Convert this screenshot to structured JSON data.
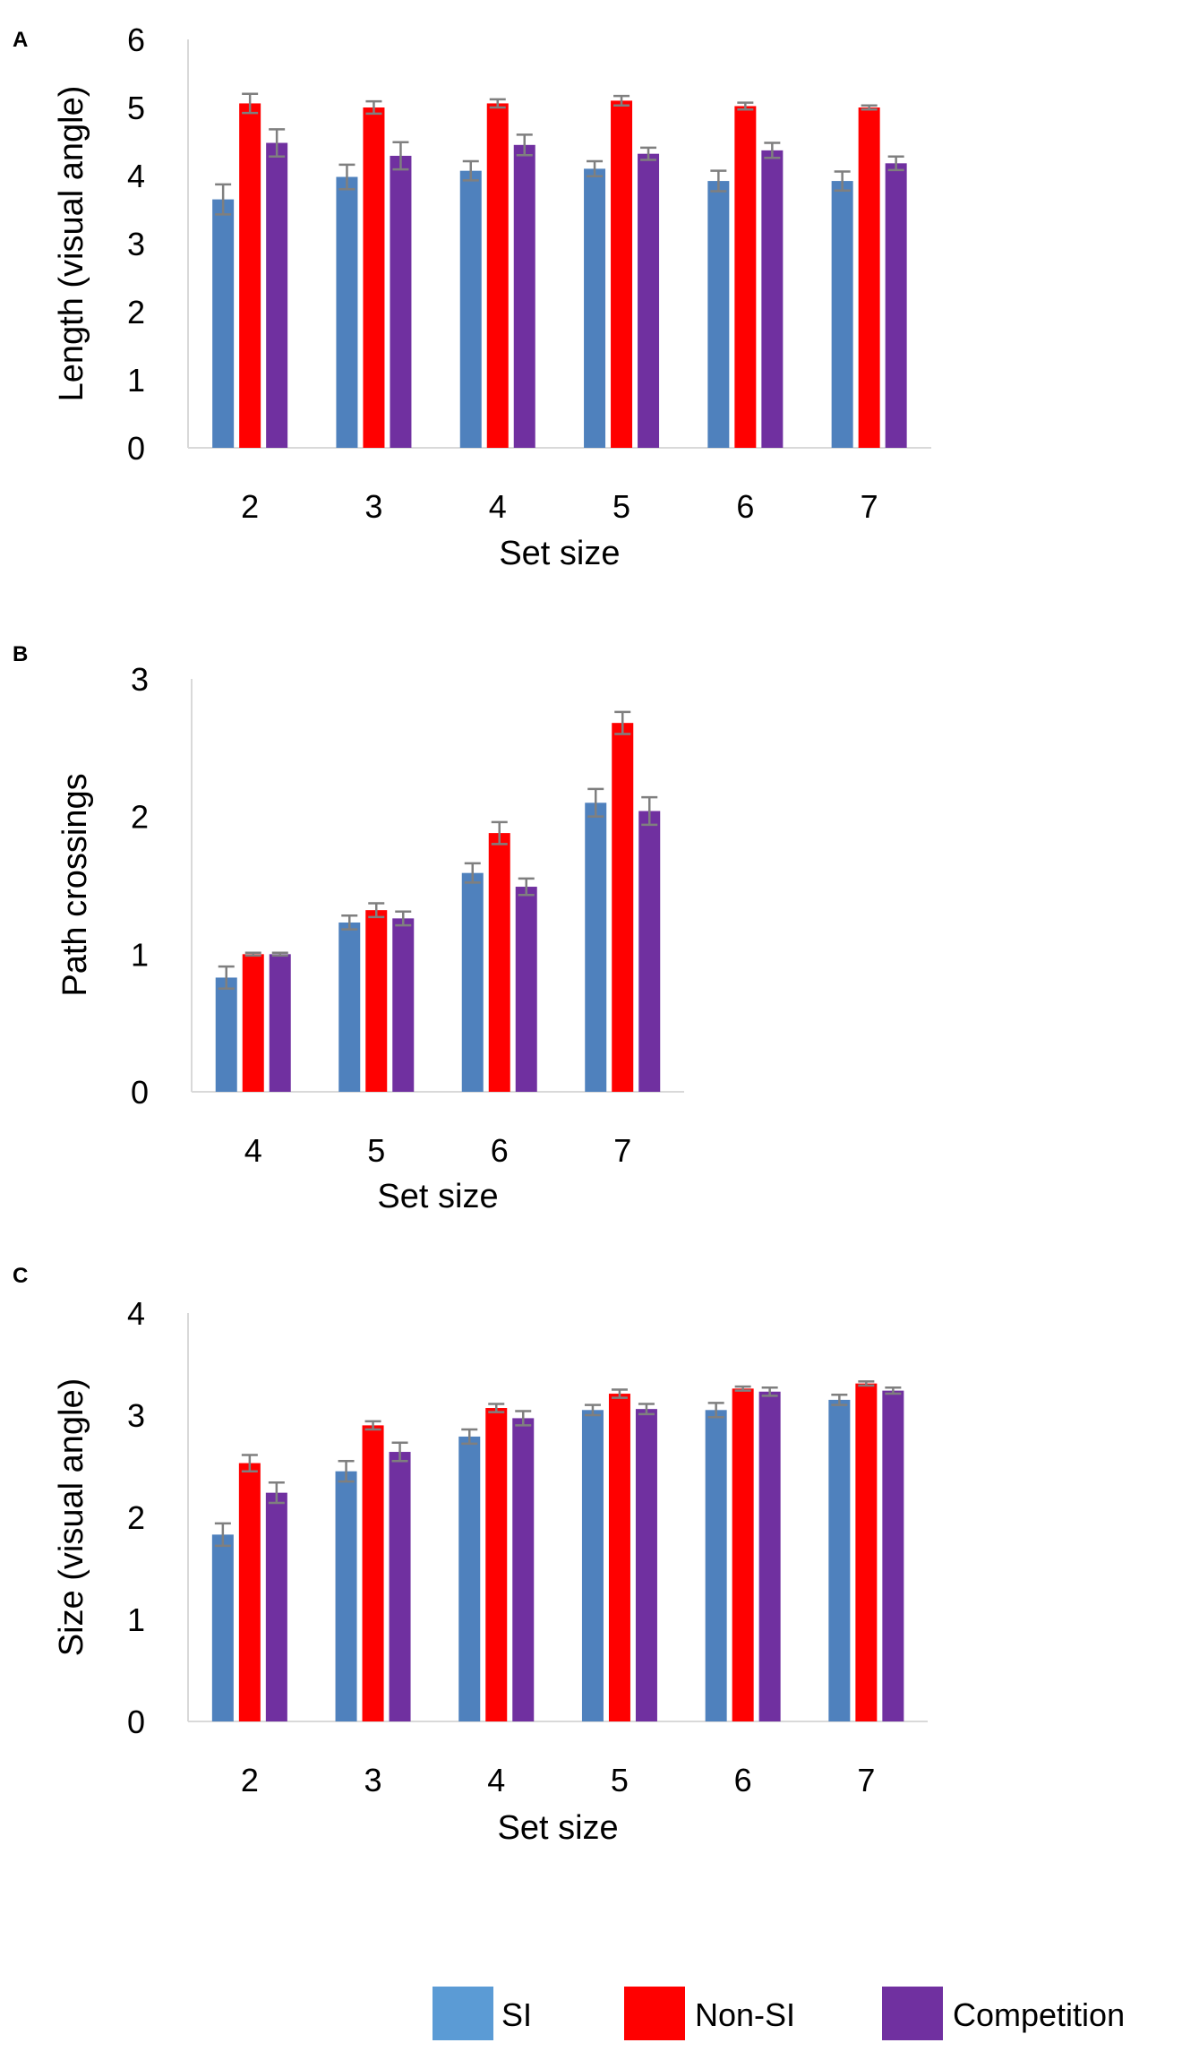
{
  "legend": [
    {
      "label": "SI",
      "color": "#5b9bd5"
    },
    {
      "label": "Non-SI",
      "color": "#ff0000"
    },
    {
      "label": "Competition",
      "color": "#7030a0"
    }
  ],
  "chart_data": [
    {
      "type": "bar",
      "panel_label": "A",
      "categories": [
        "2",
        "3",
        "4",
        "5",
        "6",
        "7"
      ],
      "xlabel": "Set size",
      "ylabel": "Length (visual angle)",
      "ylim": [
        0,
        6
      ],
      "yticks": [
        "0",
        "1",
        "2",
        "3",
        "4",
        "5",
        "6"
      ],
      "series": [
        {
          "name": "SI",
          "color": "#4f81bd",
          "values": [
            3.65,
            3.98,
            4.07,
            4.1,
            3.92,
            3.92
          ],
          "errors": [
            0.22,
            0.18,
            0.14,
            0.11,
            0.15,
            0.14
          ]
        },
        {
          "name": "Non-SI",
          "color": "#ff0000",
          "values": [
            5.06,
            5.0,
            5.06,
            5.1,
            5.02,
            5.0
          ],
          "errors": [
            0.14,
            0.09,
            0.06,
            0.07,
            0.05,
            0.03
          ]
        },
        {
          "name": "Competition",
          "color": "#7030a0",
          "values": [
            4.48,
            4.29,
            4.45,
            4.32,
            4.37,
            4.18
          ],
          "errors": [
            0.2,
            0.2,
            0.15,
            0.09,
            0.11,
            0.1
          ]
        }
      ]
    },
    {
      "type": "bar",
      "panel_label": "B",
      "categories": [
        "4",
        "5",
        "6",
        "7"
      ],
      "xlabel": "Set size",
      "ylabel": "Path crossings",
      "ylim": [
        0,
        3
      ],
      "yticks": [
        "0",
        "1",
        "2",
        "3"
      ],
      "series": [
        {
          "name": "SI",
          "color": "#4f81bd",
          "values": [
            0.83,
            1.23,
            1.59,
            2.1
          ],
          "errors": [
            0.08,
            0.05,
            0.07,
            0.1
          ]
        },
        {
          "name": "Non-SI",
          "color": "#ff0000",
          "values": [
            1.0,
            1.32,
            1.88,
            2.68
          ],
          "errors": [
            0.01,
            0.05,
            0.08,
            0.08
          ]
        },
        {
          "name": "Competition",
          "color": "#7030a0",
          "values": [
            1.0,
            1.26,
            1.49,
            2.04
          ],
          "errors": [
            0.01,
            0.05,
            0.06,
            0.1
          ]
        }
      ]
    },
    {
      "type": "bar",
      "panel_label": "C",
      "categories": [
        "2",
        "3",
        "4",
        "5",
        "6",
        "7"
      ],
      "xlabel": "Set size",
      "ylabel": "Size (visual angle)",
      "ylim": [
        0,
        4
      ],
      "yticks": [
        "0",
        "1",
        "2",
        "3",
        "4"
      ],
      "series": [
        {
          "name": "SI",
          "color": "#4f81bd",
          "values": [
            1.83,
            2.45,
            2.79,
            3.05,
            3.05,
            3.15
          ],
          "errors": [
            0.11,
            0.1,
            0.07,
            0.05,
            0.07,
            0.05
          ]
        },
        {
          "name": "Non-SI",
          "color": "#ff0000",
          "values": [
            2.53,
            2.9,
            3.07,
            3.21,
            3.26,
            3.31
          ],
          "errors": [
            0.08,
            0.04,
            0.04,
            0.04,
            0.02,
            0.02
          ]
        },
        {
          "name": "Competition",
          "color": "#7030a0",
          "values": [
            2.24,
            2.64,
            2.97,
            3.06,
            3.23,
            3.24
          ],
          "errors": [
            0.1,
            0.09,
            0.07,
            0.05,
            0.04,
            0.03
          ]
        }
      ]
    }
  ]
}
